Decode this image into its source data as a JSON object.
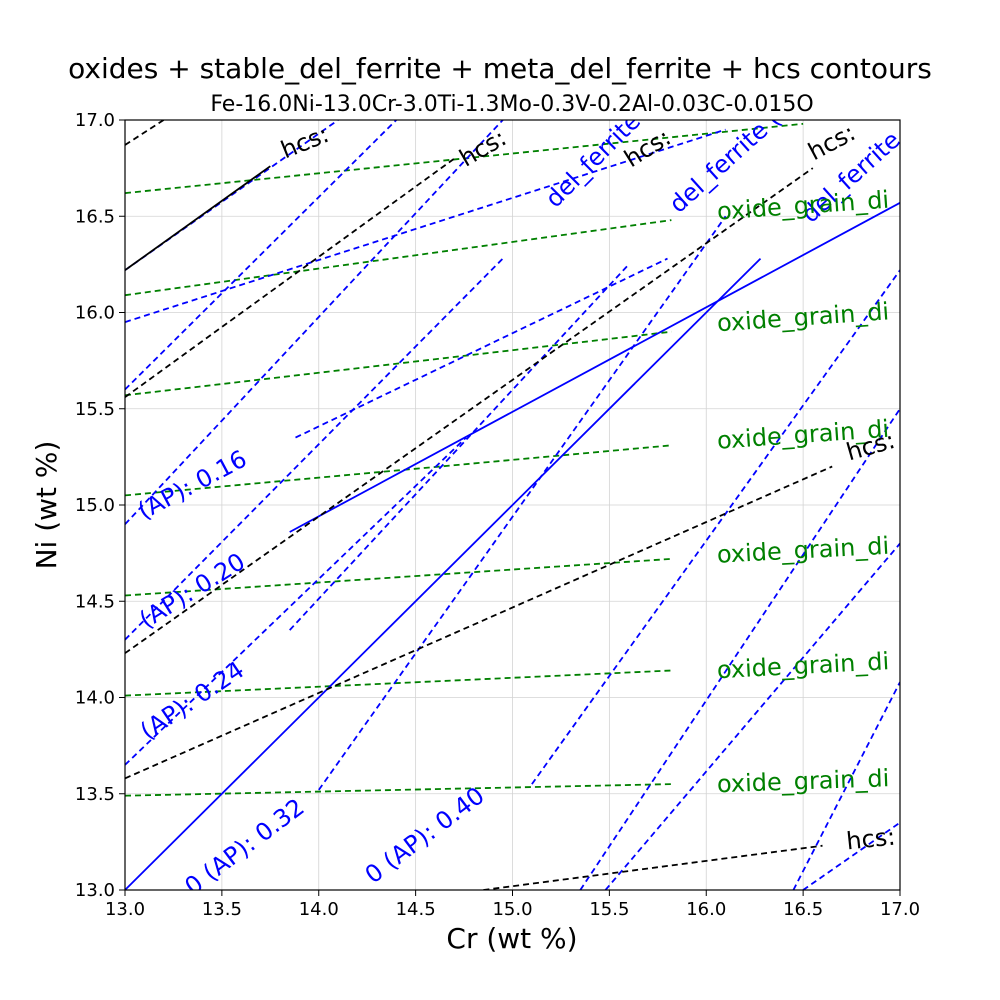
{
  "chart_data": {
    "type": "line",
    "title": "oxides + stable_del_ferrite + meta_del_ferrite + hcs contours",
    "subtitle": "Fe-16.0Ni-13.0Cr-3.0Ti-1.3Mo-0.3V-0.2Al-0.03C-0.015O",
    "xlabel": "Cr (wt %)",
    "ylabel": "Ni (wt %)",
    "xlim": [
      13.0,
      17.0
    ],
    "ylim": [
      13.0,
      17.0
    ],
    "xticks": [
      "13.0",
      "13.5",
      "14.0",
      "14.5",
      "15.0",
      "15.5",
      "16.0",
      "16.5",
      "17.0"
    ],
    "yticks": [
      "13.0",
      "13.5",
      "14.0",
      "14.5",
      "15.0",
      "15.5",
      "16.0",
      "16.5",
      "17.0"
    ],
    "grid": true,
    "colors": {
      "oxide": "#008000",
      "del_ferrite": "#0000ff",
      "hcs": "#000000"
    },
    "series": [
      {
        "group": "oxide",
        "style": "dashed",
        "color": "#008000",
        "x": [
          13.0,
          15.82
        ],
        "y": [
          13.49,
          13.55
        ]
      },
      {
        "group": "oxide",
        "style": "dashed",
        "color": "#008000",
        "x": [
          13.0,
          15.82
        ],
        "y": [
          14.01,
          14.14
        ]
      },
      {
        "group": "oxide",
        "style": "dashed",
        "color": "#008000",
        "x": [
          13.0,
          15.82
        ],
        "y": [
          14.53,
          14.72
        ]
      },
      {
        "group": "oxide",
        "style": "dashed",
        "color": "#008000",
        "x": [
          13.0,
          15.82
        ],
        "y": [
          15.05,
          15.31
        ]
      },
      {
        "group": "oxide",
        "style": "dashed",
        "color": "#008000",
        "x": [
          13.0,
          15.82
        ],
        "y": [
          15.57,
          15.9
        ]
      },
      {
        "group": "oxide",
        "style": "dashed",
        "color": "#008000",
        "x": [
          13.0,
          15.82
        ],
        "y": [
          16.09,
          16.48
        ]
      },
      {
        "group": "oxide",
        "style": "dashed",
        "color": "#008000",
        "x": [
          13.0,
          16.5
        ],
        "y": [
          16.62,
          16.98
        ]
      },
      {
        "group": "del_ferrite",
        "style": "solid",
        "color": "#0000ff",
        "x": [
          13.0,
          16.28
        ],
        "y": [
          13.0,
          16.28
        ]
      },
      {
        "group": "del_ferrite",
        "style": "solid",
        "color": "#0000ff",
        "x": [
          13.85,
          17.0
        ],
        "y": [
          14.86,
          16.57
        ]
      },
      {
        "group": "del_ferrite",
        "style": "dashed",
        "color": "#0000ff",
        "x": [
          13.0,
          14.1
        ],
        "y": [
          16.22,
          17.0
        ]
      },
      {
        "group": "del_ferrite",
        "style": "dashed",
        "color": "#0000ff",
        "x": [
          13.0,
          14.4
        ],
        "y": [
          15.6,
          17.0
        ]
      },
      {
        "group": "del_ferrite",
        "style": "dashed",
        "color": "#0000ff",
        "x": [
          13.0,
          14.95
        ],
        "y": [
          14.9,
          17.0
        ]
      },
      {
        "group": "del_ferrite",
        "style": "dashed",
        "color": "#0000ff",
        "x": [
          13.0,
          14.95
        ],
        "y": [
          14.3,
          16.28
        ]
      },
      {
        "group": "del_ferrite",
        "style": "dashed",
        "color": "#0000ff",
        "x": [
          13.0,
          14.76
        ],
        "y": [
          13.65,
          15.35
        ]
      },
      {
        "group": "del_ferrite",
        "style": "dashed",
        "color": "#0000ff",
        "x": [
          13.85,
          15.6
        ],
        "y": [
          14.35,
          16.25
        ]
      },
      {
        "group": "del_ferrite",
        "style": "dashed",
        "color": "#0000ff",
        "x": [
          13.0,
          16.1
        ],
        "y": [
          15.95,
          16.95
        ]
      },
      {
        "group": "del_ferrite",
        "style": "dashed",
        "color": "#0000ff",
        "x": [
          13.88,
          15.8
        ],
        "y": [
          15.35,
          16.28
        ]
      },
      {
        "group": "del_ferrite",
        "style": "dashed",
        "color": "#0000ff",
        "x": [
          14.0,
          16.1
        ],
        "y": [
          13.52,
          16.5
        ]
      },
      {
        "group": "del_ferrite",
        "style": "dashed",
        "color": "#0000ff",
        "x": [
          15.1,
          17.0
        ],
        "y": [
          13.55,
          16.22
        ]
      },
      {
        "group": "del_ferrite",
        "style": "dashed",
        "color": "#0000ff",
        "x": [
          15.35,
          17.0
        ],
        "y": [
          13.0,
          15.5
        ]
      },
      {
        "group": "del_ferrite",
        "style": "dashed",
        "color": "#0000ff",
        "x": [
          15.48,
          17.0
        ],
        "y": [
          13.0,
          14.8
        ]
      },
      {
        "group": "del_ferrite",
        "style": "dashed",
        "color": "#0000ff",
        "x": [
          16.45,
          17.0
        ],
        "y": [
          13.0,
          14.08
        ]
      },
      {
        "group": "del_ferrite",
        "style": "dashed",
        "color": "#0000ff",
        "x": [
          16.5,
          17.0
        ],
        "y": [
          13.0,
          13.35
        ]
      },
      {
        "group": "hcs",
        "style": "solid",
        "color": "#000000",
        "x": [
          13.0,
          13.75
        ],
        "y": [
          16.22,
          16.76
        ]
      },
      {
        "group": "hcs",
        "style": "dashed",
        "color": "#000000",
        "x": [
          13.0,
          13.2
        ],
        "y": [
          16.87,
          17.0
        ]
      },
      {
        "group": "hcs",
        "style": "dashed",
        "color": "#000000",
        "x": [
          13.0,
          14.7
        ],
        "y": [
          15.56,
          16.8
        ]
      },
      {
        "group": "hcs",
        "style": "dashed",
        "color": "#000000",
        "x": [
          13.0,
          16.55
        ],
        "y": [
          14.23,
          16.75
        ]
      },
      {
        "group": "hcs",
        "style": "dashed",
        "color": "#000000",
        "x": [
          13.0,
          16.65
        ],
        "y": [
          13.58,
          15.2
        ]
      },
      {
        "group": "hcs",
        "style": "dashed",
        "color": "#000000",
        "x": [
          14.85,
          16.6
        ],
        "y": [
          13.0,
          13.23
        ]
      }
    ],
    "labels": [
      {
        "text": "(AP): 0.16",
        "color": "#0000ff",
        "x": 13.35,
        "y": 15.1,
        "angle": -28
      },
      {
        "text": "(AP): 0.20",
        "color": "#0000ff",
        "x": 13.35,
        "y": 14.55,
        "angle": -32
      },
      {
        "text": "(AP): 0.24",
        "color": "#0000ff",
        "x": 13.35,
        "y": 13.98,
        "angle": -34
      },
      {
        "text": "0 (AP): 0.32",
        "color": "#0000ff",
        "x": 13.62,
        "y": 13.22,
        "angle": -37
      },
      {
        "text": "0 (AP): 0.40",
        "color": "#0000ff",
        "x": 14.55,
        "y": 13.28,
        "angle": -37
      },
      {
        "text": "del_ferrite (",
        "color": "#0000ff",
        "x": 15.45,
        "y": 16.82,
        "angle": -45
      },
      {
        "text": "del_ferrite (",
        "color": "#0000ff",
        "x": 16.1,
        "y": 16.78,
        "angle": -42
      },
      {
        "text": "del_ferrite",
        "color": "#0000ff",
        "x": 16.75,
        "y": 16.7,
        "angle": -42
      },
      {
        "text": "oxide_grain_di",
        "color": "#008000",
        "x": 16.5,
        "y": 16.55,
        "angle": -4
      },
      {
        "text": "oxide_grain_di",
        "color": "#008000",
        "x": 16.5,
        "y": 15.97,
        "angle": -4
      },
      {
        "text": "oxide_grain_di",
        "color": "#008000",
        "x": 16.5,
        "y": 15.36,
        "angle": -4
      },
      {
        "text": "oxide_grain_di",
        "color": "#008000",
        "x": 16.5,
        "y": 14.76,
        "angle": -3
      },
      {
        "text": "oxide_grain_di",
        "color": "#008000",
        "x": 16.5,
        "y": 14.16,
        "angle": -3
      },
      {
        "text": "oxide_grain_di",
        "color": "#008000",
        "x": 16.5,
        "y": 13.56,
        "angle": -2
      },
      {
        "text": "hcs:",
        "color": "#000000",
        "x": 13.93,
        "y": 16.88,
        "angle": -22
      },
      {
        "text": "hcs:",
        "color": "#000000",
        "x": 14.85,
        "y": 16.85,
        "angle": -30
      },
      {
        "text": "hcs:",
        "color": "#000000",
        "x": 15.7,
        "y": 16.85,
        "angle": -32
      },
      {
        "text": "hcs:",
        "color": "#000000",
        "x": 16.65,
        "y": 16.88,
        "angle": -28
      },
      {
        "text": "hcs:",
        "color": "#000000",
        "x": 16.85,
        "y": 15.3,
        "angle": -16
      },
      {
        "text": "hcs:",
        "color": "#000000",
        "x": 16.85,
        "y": 13.26,
        "angle": -6
      }
    ]
  }
}
